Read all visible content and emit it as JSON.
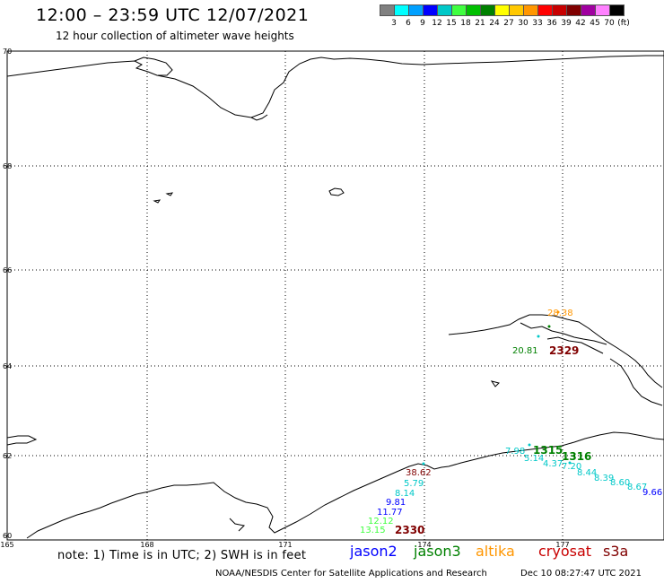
{
  "header": {
    "title": "12:00 – 23:59 UTC 12/07/2021",
    "subtitle": "12 hour collection of altimeter wave heights"
  },
  "scale": {
    "colors": [
      "#808080",
      "#00ffff",
      "#00a0ff",
      "#0000ff",
      "#00c8c8",
      "#40ff40",
      "#00c000",
      "#008000",
      "#ffff00",
      "#ffc800",
      "#ff9600",
      "#ff0000",
      "#c80000",
      "#800000",
      "#a000a0",
      "#ff80ff",
      "#000000"
    ],
    "labels": [
      "3",
      "6",
      "9",
      "12",
      "15",
      "18",
      "21",
      "24",
      "27",
      "30",
      "33",
      "36",
      "39",
      "42",
      "45",
      "70"
    ],
    "unit": "(ft)"
  },
  "axes": {
    "lon_labels": [
      "165",
      "168",
      "171",
      "174",
      "177"
    ],
    "lat_labels": [
      "70",
      "68",
      "66",
      "64",
      "62",
      "60"
    ]
  },
  "observations": [
    {
      "text": "28.38",
      "color": "#ff9600"
    },
    {
      "text": "20.81",
      "color": "#008000"
    },
    {
      "text": "2329",
      "color": "#800000"
    },
    {
      "text": "7.98",
      "color": "#00c8c8"
    },
    {
      "text": "1315",
      "color": "#008000"
    },
    {
      "text": "1316",
      "color": "#008000"
    },
    {
      "text": "5.14",
      "color": "#00c8c8"
    },
    {
      "text": "4.37",
      "color": "#00c8c8"
    },
    {
      "text": "7.20",
      "color": "#00c8c8"
    },
    {
      "text": "8.44",
      "color": "#00c8c8"
    },
    {
      "text": "8.39",
      "color": "#00c8c8"
    },
    {
      "text": "8.60",
      "color": "#00c8c8"
    },
    {
      "text": "8.67",
      "color": "#00c8c8"
    },
    {
      "text": "9.66",
      "color": "#0000ff"
    },
    {
      "text": "38.62",
      "color": "#800000"
    },
    {
      "text": "5.79",
      "color": "#00c8c8"
    },
    {
      "text": "8.14",
      "color": "#00c8c8"
    },
    {
      "text": "9.81",
      "color": "#0000ff"
    },
    {
      "text": "11.77",
      "color": "#0000ff"
    },
    {
      "text": "12.12",
      "color": "#40ff40"
    },
    {
      "text": "13.15",
      "color": "#40ff40"
    },
    {
      "text": "2330",
      "color": "#800000"
    }
  ],
  "footer": {
    "note": "note: 1) Time is in UTC; 2) SWH is in feet",
    "missions": [
      {
        "name": "jason2",
        "color": "#0000ff"
      },
      {
        "name": "jason3",
        "color": "#008000"
      },
      {
        "name": "altika",
        "color": "#ff9600"
      },
      {
        "name": "cryosat",
        "color": "#c80000"
      },
      {
        "name": "s3a",
        "color": "#800000"
      }
    ],
    "credit": "NOAA/NESDIS Center for Satellite Applications and Research",
    "date": "Dec 10 08:27:47 UTC 2021"
  }
}
